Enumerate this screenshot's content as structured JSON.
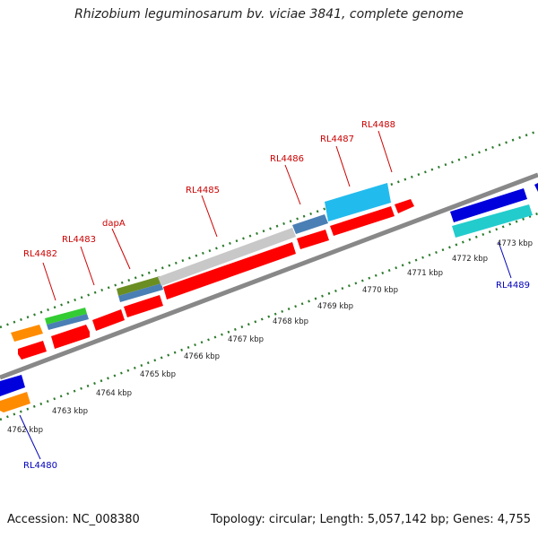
{
  "title": "Rhizobium leguminosarum bv. viciae 3841, complete genome",
  "footer": {
    "accession": "Accession: NC_008380",
    "stats": "Topology: circular; Length: 5,057,142 bp; Genes: 4,755"
  },
  "colors": {
    "forward_label": "#cc0000",
    "reverse_label": "#0000bb",
    "backbone": "#888888",
    "tick": "#2a7a2a",
    "cds_red": "#ff0000",
    "orange": "#ff8c00",
    "green": "#33cc33",
    "steelblue": "#4a7fb5",
    "grey": "#c8c8c8",
    "olive": "#6b8e23",
    "skyblue": "#22bbee",
    "blue": "#0000dd",
    "cyan": "#22cccc"
  },
  "labels_top": [
    "RL4482",
    "RL4483",
    "dapA",
    "RL4485",
    "RL4486",
    "RL4487",
    "RL4488"
  ],
  "labels_bottom": [
    "RL4480",
    "RL4489"
  ],
  "kbp_ticks": [
    "4762 kbp",
    "4763 kbp",
    "4764 kbp",
    "4765 kbp",
    "4766 kbp",
    "4767 kbp",
    "4768 kbp",
    "4769 kbp",
    "4770 kbp",
    "4771 kbp",
    "4772 kbp",
    "4773 kbp"
  ]
}
